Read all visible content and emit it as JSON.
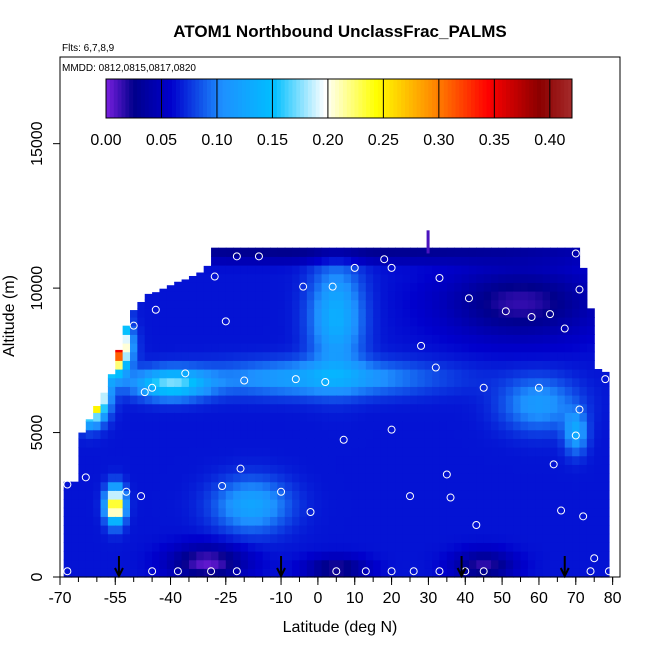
{
  "chart_data": {
    "type": "heatmap",
    "title": "ATOM1 Northbound UnclassFrac_PALMS",
    "subtitle_flights": "Flts: 6,7,8,9",
    "subtitle_dates": "MMDD: 0812,0815,0817,0820",
    "xlabel": "Latitude (deg N)",
    "ylabel": "Altitude (m)",
    "xlim": [
      -70,
      82
    ],
    "ylim": [
      0,
      18000
    ],
    "x_ticks": [
      -70,
      -55,
      -40,
      -25,
      -10,
      0,
      10,
      20,
      30,
      40,
      50,
      60,
      70,
      80
    ],
    "x_minor_step": 5,
    "y_ticks": [
      0,
      5000,
      10000,
      15000
    ],
    "colorbar": {
      "min": 0.0,
      "max": 0.42,
      "ticks": [
        "0.00",
        "0.05",
        "0.10",
        "0.15",
        "0.20",
        "0.25",
        "0.30",
        "0.35",
        "0.40"
      ],
      "tick_values": [
        0,
        0.05,
        0.1,
        0.15,
        0.2,
        0.25,
        0.3,
        0.35,
        0.4
      ],
      "colors": [
        "#7a1fe0",
        "#00008b",
        "#0000cd",
        "#1e90ff",
        "#00bfff",
        "#ffffff",
        "#ffff00",
        "#ff8c00",
        "#ff0000",
        "#8b0000",
        "#a52a2a"
      ]
    },
    "samples": [
      {
        "lat": -68,
        "alt": 3200
      },
      {
        "lat": -68,
        "alt": 200
      },
      {
        "lat": -63,
        "alt": 3450
      },
      {
        "lat": -52,
        "alt": 2950
      },
      {
        "lat": -48,
        "alt": 2800
      },
      {
        "lat": -50,
        "alt": 8700
      },
      {
        "lat": -47,
        "alt": 6400
      },
      {
        "lat": -45,
        "alt": 6550
      },
      {
        "lat": -44,
        "alt": 9250
      },
      {
        "lat": -36,
        "alt": 7050
      },
      {
        "lat": -28,
        "alt": 10400
      },
      {
        "lat": -25,
        "alt": 8850
      },
      {
        "lat": -21,
        "alt": 3750
      },
      {
        "lat": -20,
        "alt": 6800
      },
      {
        "lat": -16,
        "alt": 11100
      },
      {
        "lat": -26,
        "alt": 3150
      },
      {
        "lat": -22,
        "alt": 11100
      },
      {
        "lat": -10,
        "alt": 2950
      },
      {
        "lat": -6,
        "alt": 6850
      },
      {
        "lat": -4,
        "alt": 10050
      },
      {
        "lat": 2,
        "alt": 6750
      },
      {
        "lat": 4,
        "alt": 10050
      },
      {
        "lat": 7,
        "alt": 4750
      },
      {
        "lat": -2,
        "alt": 2250
      },
      {
        "lat": 10,
        "alt": 10700
      },
      {
        "lat": 18,
        "alt": 11000
      },
      {
        "lat": 20,
        "alt": 10700
      },
      {
        "lat": 20,
        "alt": 5100
      },
      {
        "lat": 28,
        "alt": 8000
      },
      {
        "lat": 32,
        "alt": 7250
      },
      {
        "lat": 33,
        "alt": 10350
      },
      {
        "lat": 35,
        "alt": 3550
      },
      {
        "lat": 36,
        "alt": 2750
      },
      {
        "lat": 25,
        "alt": 2800
      },
      {
        "lat": 41,
        "alt": 9650
      },
      {
        "lat": 45,
        "alt": 6550
      },
      {
        "lat": 43,
        "alt": 1800
      },
      {
        "lat": 51,
        "alt": 9200
      },
      {
        "lat": 58,
        "alt": 9000
      },
      {
        "lat": 63,
        "alt": 9100
      },
      {
        "lat": 60,
        "alt": 6550
      },
      {
        "lat": 64,
        "alt": 3900
      },
      {
        "lat": 66,
        "alt": 2300
      },
      {
        "lat": 67,
        "alt": 8600
      },
      {
        "lat": 70,
        "alt": 11200
      },
      {
        "lat": 71,
        "alt": 9950
      },
      {
        "lat": 71,
        "alt": 5800
      },
      {
        "lat": 70,
        "alt": 4900
      },
      {
        "lat": 72,
        "alt": 2100
      },
      {
        "lat": 75,
        "alt": 650
      },
      {
        "lat": 78,
        "alt": 6850
      },
      {
        "lat": 74,
        "alt": 200
      },
      {
        "lat": 79,
        "alt": 200
      },
      {
        "lat": -45,
        "alt": 200
      },
      {
        "lat": -38,
        "alt": 200
      },
      {
        "lat": -29,
        "alt": 200
      },
      {
        "lat": -22,
        "alt": 200
      },
      {
        "lat": 5,
        "alt": 200
      },
      {
        "lat": 13,
        "alt": 200
      },
      {
        "lat": 20,
        "alt": 200
      },
      {
        "lat": 26,
        "alt": 200
      },
      {
        "lat": 33,
        "alt": 200
      },
      {
        "lat": 40,
        "alt": 200
      },
      {
        "lat": 45,
        "alt": 200
      }
    ],
    "arrows_lat": [
      -54,
      -10,
      39,
      67
    ]
  }
}
